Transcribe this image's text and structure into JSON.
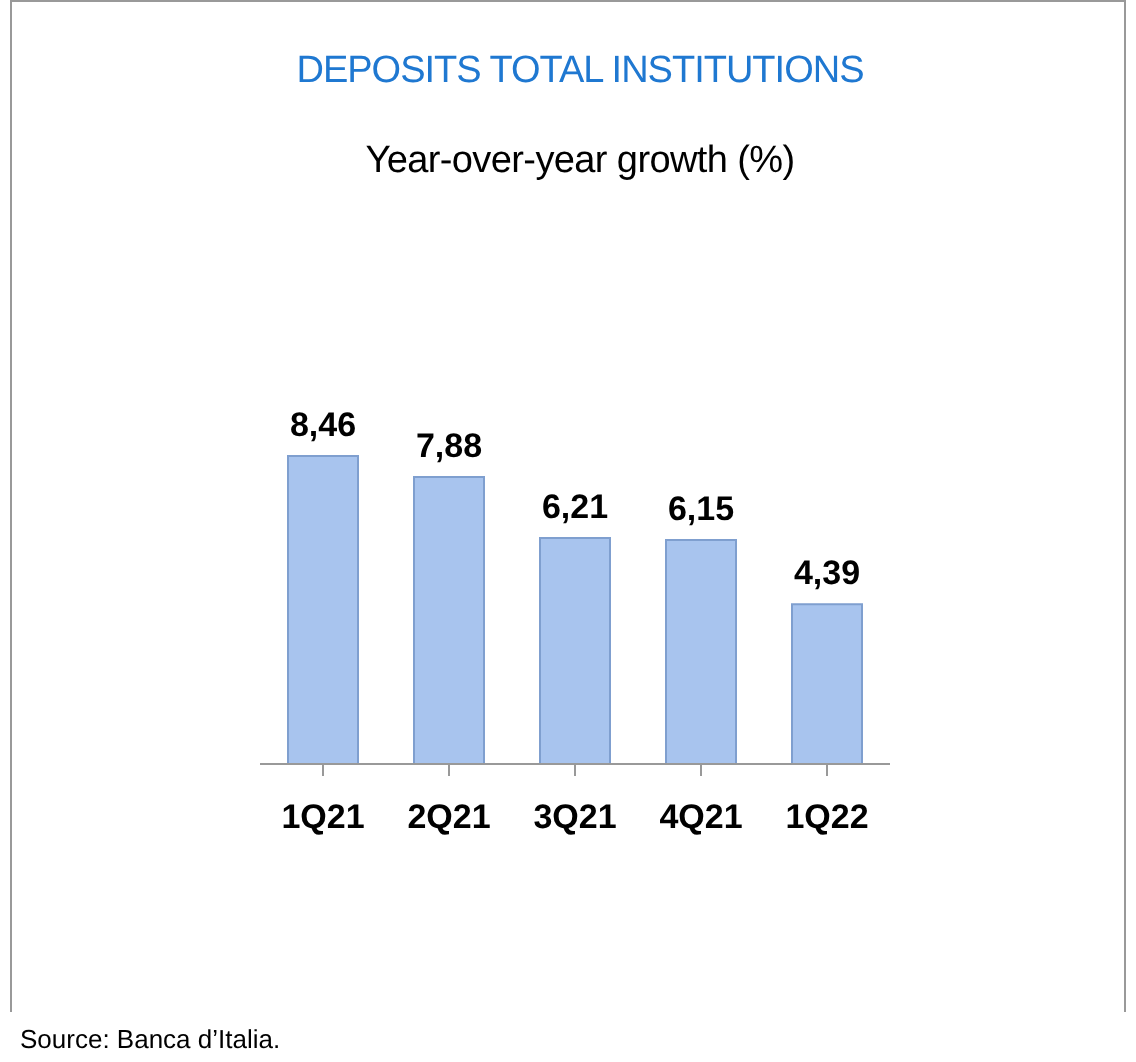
{
  "chart_data": {
    "type": "bar",
    "title": "DEPOSITS TOTAL INSTITUTIONS",
    "subtitle": "Year-over-year growth (%)",
    "categories": [
      "1Q21",
      "2Q21",
      "3Q21",
      "4Q21",
      "1Q22"
    ],
    "values": [
      8.46,
      7.88,
      6.21,
      6.15,
      4.39
    ],
    "value_labels": [
      "8,46",
      "7,88",
      "6,21",
      "6,15",
      "4,39"
    ],
    "color": "#a8c4ee",
    "annotations": [
      "Source: Banca d’Italia."
    ]
  }
}
